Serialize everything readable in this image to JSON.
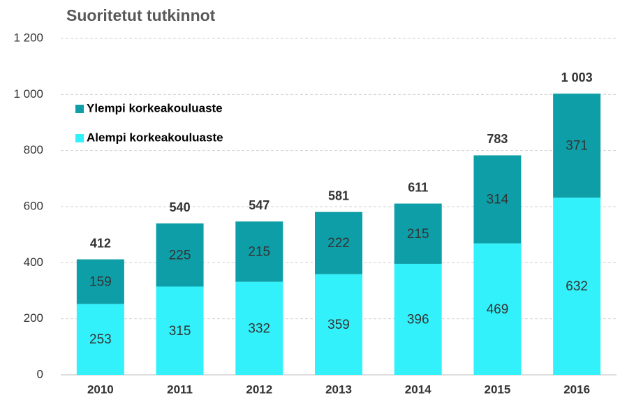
{
  "chart_data": {
    "type": "stacked_bar",
    "title": "Suoritetut tutkinnot",
    "categories": [
      "2010",
      "2011",
      "2012",
      "2013",
      "2014",
      "2015",
      "2016"
    ],
    "series": [
      {
        "name": "Alempi korkeakouluaste",
        "color": "#33f1fb",
        "values": [
          253,
          315,
          332,
          359,
          396,
          469,
          632
        ]
      },
      {
        "name": "Ylempi korkeakouluaste",
        "color": "#0e9ea7",
        "values": [
          159,
          225,
          215,
          222,
          215,
          314,
          371
        ]
      }
    ],
    "totals": [
      412,
      540,
      547,
      581,
      611,
      783,
      1003
    ],
    "total_labels": [
      "412",
      "540",
      "547",
      "581",
      "611",
      "783",
      "1 003"
    ],
    "ylim": [
      0,
      1200
    ],
    "yticks": [
      0,
      200,
      400,
      600,
      800,
      {
        "value": 1000,
        "label": "1 000"
      },
      {
        "value": 1200,
        "label": "1 200"
      }
    ],
    "grid": true,
    "legend": "upper left"
  }
}
